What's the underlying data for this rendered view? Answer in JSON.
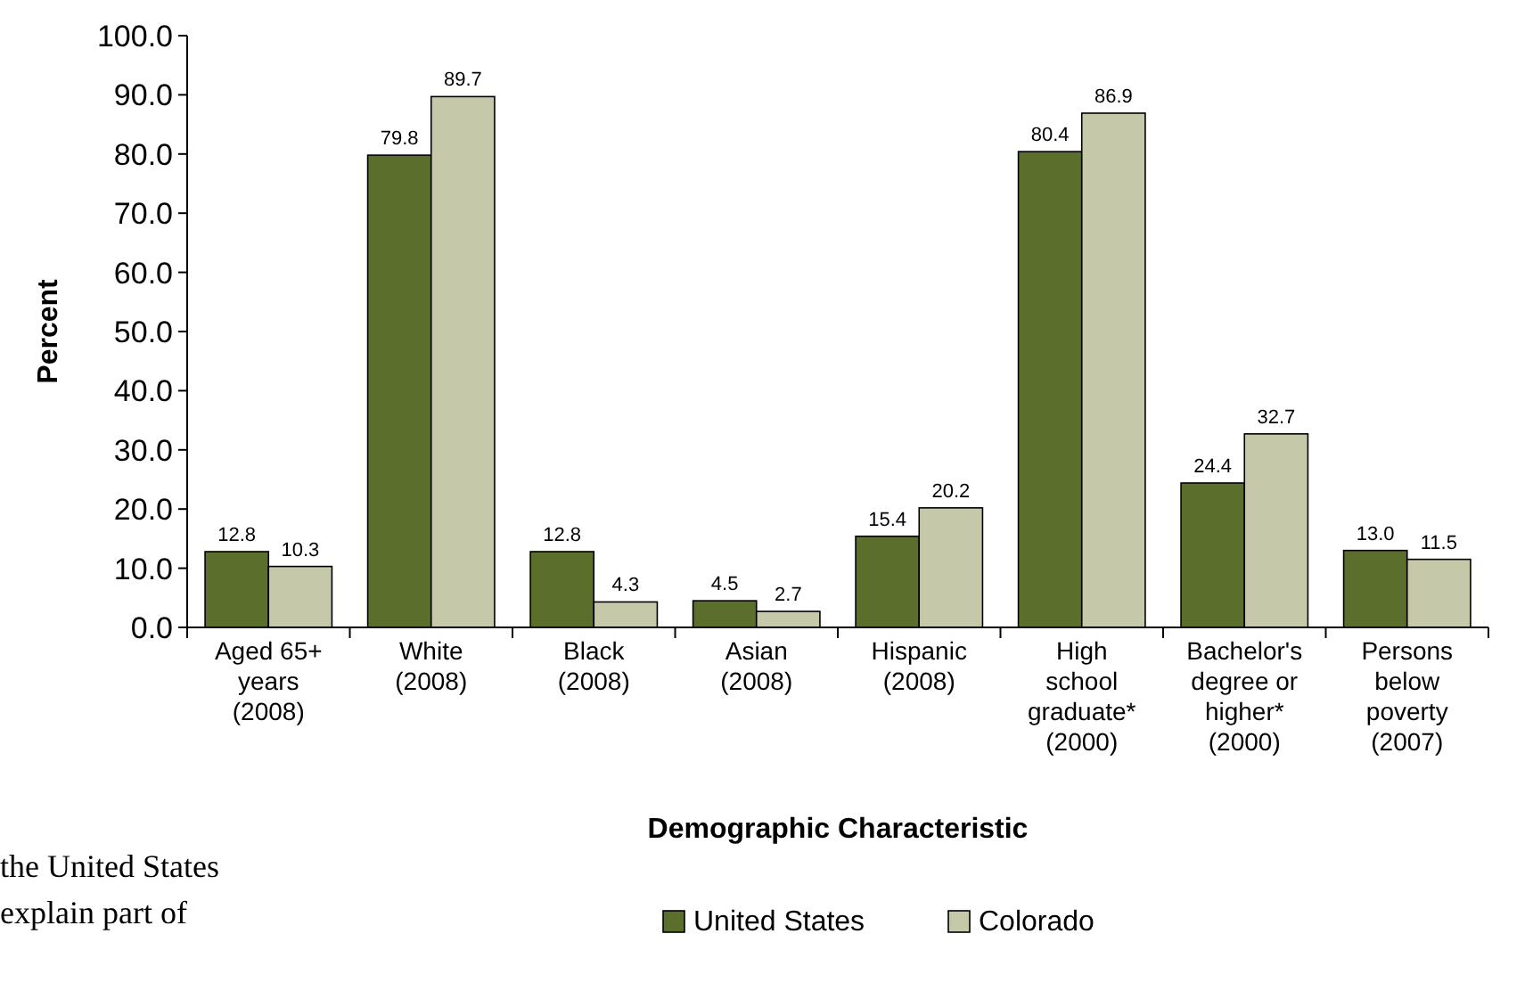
{
  "chart_data": {
    "type": "bar",
    "xlabel": "Demographic Characteristic",
    "ylabel": "Percent",
    "categories": [
      "Aged 65+ years (2008)",
      "White (2008)",
      "Black (2008)",
      "Asian (2008)",
      "Hispanic (2008)",
      "High school graduate* (2000)",
      "Bachelor's degree or higher* (2000)",
      "Persons below poverty (2007)"
    ],
    "series": [
      {
        "name": "United States",
        "color": "#5b6e2b",
        "values": [
          12.8,
          79.8,
          12.8,
          4.5,
          15.4,
          80.4,
          24.4,
          13.0
        ],
        "value_labels": [
          "12.8",
          "79.8",
          "12.8",
          "4.5",
          "15.4",
          "80.4",
          "24.4",
          "13.0"
        ]
      },
      {
        "name": "Colorado",
        "color": "#c6c9a9",
        "values": [
          10.3,
          89.7,
          4.3,
          2.7,
          20.2,
          86.9,
          32.7,
          11.5
        ],
        "value_labels": [
          "10.3",
          "89.7",
          "4.3",
          "2.7",
          "20.2",
          "86.9",
          "32.7",
          "11.5"
        ]
      }
    ],
    "ylim": [
      0,
      100
    ],
    "yticks": [
      {
        "value": 0,
        "label": "0.0"
      },
      {
        "value": 10,
        "label": "10.0"
      },
      {
        "value": 20,
        "label": "20.0"
      },
      {
        "value": 30,
        "label": "30.0"
      },
      {
        "value": 40,
        "label": "40.0"
      },
      {
        "value": 50,
        "label": "50.0"
      },
      {
        "value": 60,
        "label": "60.0"
      },
      {
        "value": 70,
        "label": "70.0"
      },
      {
        "value": 80,
        "label": "80.0"
      },
      {
        "value": 90,
        "label": "90.0"
      },
      {
        "value": 100,
        "label": "100.0"
      }
    ],
    "grid": false,
    "legend": "bottom",
    "annotations": [
      "the United States",
      "explain part of"
    ]
  }
}
